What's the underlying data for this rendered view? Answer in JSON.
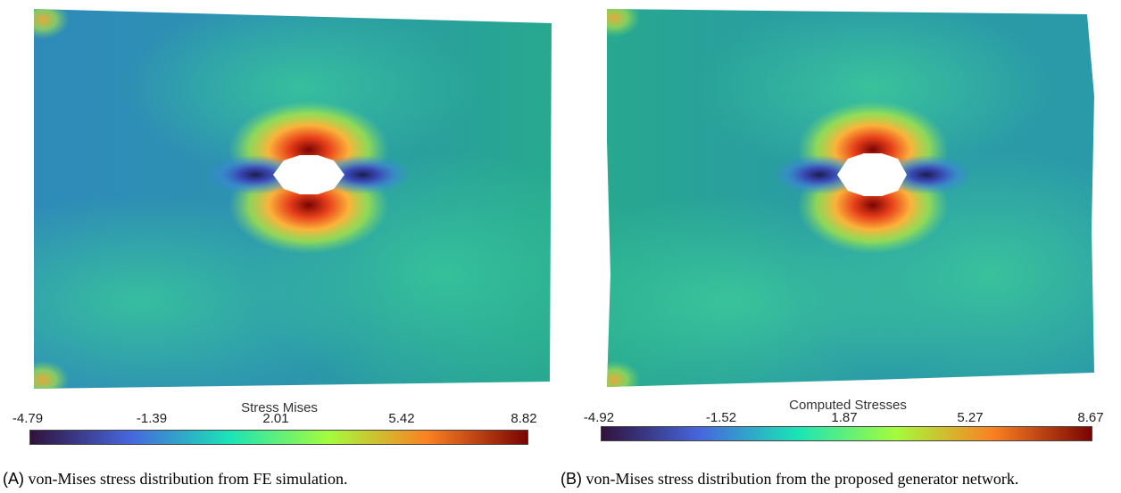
{
  "panels": [
    {
      "colorbar_title": "Stress Mises",
      "ticks": [
        "-4.79",
        "-1.39",
        "2.01",
        "5.42",
        "8.82"
      ],
      "caption_tag": "(A)",
      "caption_text": "von-Mises stress distribution from FE simulation."
    },
    {
      "colorbar_title": "Computed Stresses",
      "ticks": [
        "-4.92",
        "-1.52",
        "1.87",
        "5.27",
        "8.67"
      ],
      "caption_tag": "(B)",
      "caption_text": "von-Mises stress distribution from the proposed generator network."
    }
  ],
  "colormap": [
    "#30123b",
    "#4666dd",
    "#1ae4b6",
    "#a4fc3c",
    "#fb8022",
    "#7a0403"
  ],
  "field_colors": {
    "base": "#25a58d",
    "low": "#3b7fcf",
    "high": "#c8e53a",
    "hot": "#e8401a",
    "cold": "#1c1d54"
  }
}
